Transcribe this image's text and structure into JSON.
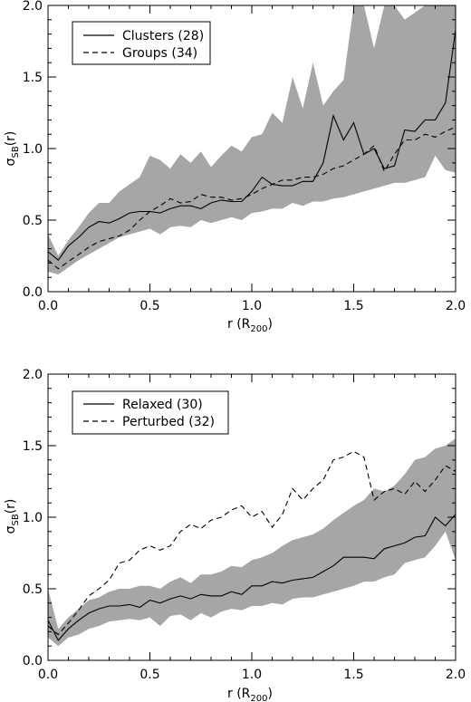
{
  "chart_data": [
    {
      "type": "line",
      "xlabel": {
        "main": "r (R",
        "sub": "200",
        "close": ")"
      },
      "ylabel": {
        "main": "σ",
        "sub": "SB",
        "close": "(r)"
      },
      "xlim": [
        0.0,
        2.0
      ],
      "ylim": [
        0.0,
        2.0
      ],
      "xticks": [
        "0.0",
        "0.5",
        "1.0",
        "1.5",
        "2.0"
      ],
      "yticks": [
        "0.0",
        "0.5",
        "1.0",
        "1.5",
        "2.0"
      ],
      "legend_position": "top-left",
      "band_color": "#a6a6a6",
      "band": {
        "x": [
          0.0,
          0.05,
          0.1,
          0.15,
          0.2,
          0.25,
          0.3,
          0.35,
          0.4,
          0.45,
          0.5,
          0.55,
          0.6,
          0.65,
          0.7,
          0.75,
          0.8,
          0.85,
          0.9,
          0.95,
          1.0,
          1.05,
          1.1,
          1.15,
          1.2,
          1.25,
          1.3,
          1.35,
          1.4,
          1.45,
          1.5,
          1.55,
          1.6,
          1.65,
          1.7,
          1.75,
          1.8,
          1.85,
          1.9,
          1.95,
          2.0
        ],
        "upper": [
          0.4,
          0.25,
          0.36,
          0.45,
          0.55,
          0.62,
          0.62,
          0.7,
          0.75,
          0.8,
          0.95,
          0.92,
          0.86,
          0.96,
          0.9,
          0.98,
          0.87,
          0.95,
          1.02,
          0.98,
          1.08,
          1.1,
          1.25,
          1.18,
          1.5,
          1.28,
          1.6,
          1.3,
          1.4,
          1.48,
          2.0,
          2.0,
          1.7,
          2.0,
          2.0,
          1.9,
          1.95,
          2.0,
          2.0,
          2.0,
          2.0
        ],
        "lower": [
          0.14,
          0.12,
          0.17,
          0.22,
          0.26,
          0.3,
          0.34,
          0.38,
          0.4,
          0.42,
          0.44,
          0.4,
          0.45,
          0.46,
          0.45,
          0.5,
          0.48,
          0.5,
          0.52,
          0.5,
          0.55,
          0.56,
          0.58,
          0.58,
          0.62,
          0.6,
          0.63,
          0.63,
          0.65,
          0.66,
          0.68,
          0.7,
          0.72,
          0.74,
          0.76,
          0.76,
          0.78,
          0.8,
          0.95,
          0.85,
          0.83
        ]
      },
      "series": [
        {
          "name": "Clusters (28)",
          "dash": "solid",
          "x": [
            0.0,
            0.05,
            0.1,
            0.15,
            0.2,
            0.25,
            0.3,
            0.35,
            0.4,
            0.45,
            0.5,
            0.55,
            0.6,
            0.65,
            0.7,
            0.75,
            0.8,
            0.85,
            0.9,
            0.95,
            1.0,
            1.05,
            1.1,
            1.15,
            1.2,
            1.25,
            1.3,
            1.35,
            1.4,
            1.45,
            1.5,
            1.55,
            1.6,
            1.65,
            1.7,
            1.75,
            1.8,
            1.85,
            1.9,
            1.95,
            2.0
          ],
          "values": [
            0.28,
            0.22,
            0.32,
            0.38,
            0.45,
            0.49,
            0.48,
            0.51,
            0.55,
            0.56,
            0.56,
            0.55,
            0.58,
            0.6,
            0.6,
            0.58,
            0.62,
            0.64,
            0.63,
            0.63,
            0.7,
            0.8,
            0.75,
            0.74,
            0.74,
            0.77,
            0.77,
            0.9,
            1.23,
            1.06,
            1.18,
            0.96,
            1.0,
            0.86,
            0.88,
            1.13,
            1.12,
            1.2,
            1.2,
            1.32,
            1.83
          ]
        },
        {
          "name": "Groups (34)",
          "dash": "dashed",
          "x": [
            0.0,
            0.05,
            0.1,
            0.15,
            0.2,
            0.25,
            0.3,
            0.35,
            0.4,
            0.45,
            0.5,
            0.55,
            0.6,
            0.65,
            0.7,
            0.75,
            0.8,
            0.85,
            0.9,
            0.95,
            1.0,
            1.05,
            1.1,
            1.15,
            1.2,
            1.25,
            1.3,
            1.35,
            1.4,
            1.45,
            1.5,
            1.55,
            1.6,
            1.65,
            1.7,
            1.75,
            1.8,
            1.85,
            1.9,
            1.95,
            2.0
          ],
          "values": [
            0.22,
            0.16,
            0.21,
            0.26,
            0.31,
            0.35,
            0.37,
            0.39,
            0.43,
            0.5,
            0.56,
            0.6,
            0.65,
            0.62,
            0.63,
            0.68,
            0.66,
            0.66,
            0.64,
            0.65,
            0.68,
            0.72,
            0.75,
            0.78,
            0.78,
            0.8,
            0.8,
            0.82,
            0.86,
            0.88,
            0.92,
            0.96,
            1.02,
            0.84,
            0.96,
            1.06,
            1.06,
            1.1,
            1.08,
            1.12,
            1.15
          ]
        }
      ]
    },
    {
      "type": "line",
      "xlabel": {
        "main": "r (R",
        "sub": "200",
        "close": ")"
      },
      "ylabel": {
        "main": "σ",
        "sub": "SB",
        "close": "(r)"
      },
      "xlim": [
        0.0,
        2.0
      ],
      "ylim": [
        0.0,
        2.0
      ],
      "xticks": [
        "0.0",
        "0.5",
        "1.0",
        "1.5",
        "2.0"
      ],
      "yticks": [
        "0.0",
        "0.5",
        "1.0",
        "1.5",
        "2.0"
      ],
      "legend_position": "top-left",
      "band_color": "#a6a6a6",
      "band": {
        "x": [
          0.0,
          0.05,
          0.1,
          0.15,
          0.2,
          0.25,
          0.3,
          0.35,
          0.4,
          0.45,
          0.5,
          0.55,
          0.6,
          0.65,
          0.7,
          0.75,
          0.8,
          0.85,
          0.9,
          0.95,
          1.0,
          1.05,
          1.1,
          1.15,
          1.2,
          1.25,
          1.3,
          1.35,
          1.4,
          1.45,
          1.5,
          1.55,
          1.6,
          1.65,
          1.7,
          1.75,
          1.8,
          1.85,
          1.9,
          1.95,
          2.0
        ],
        "upper": [
          0.5,
          0.22,
          0.3,
          0.36,
          0.42,
          0.44,
          0.48,
          0.5,
          0.5,
          0.52,
          0.52,
          0.5,
          0.55,
          0.58,
          0.54,
          0.6,
          0.6,
          0.62,
          0.66,
          0.65,
          0.7,
          0.72,
          0.75,
          0.8,
          0.84,
          0.86,
          0.88,
          0.92,
          0.98,
          1.03,
          1.08,
          1.12,
          1.2,
          1.18,
          1.22,
          1.3,
          1.4,
          1.42,
          1.48,
          1.5,
          1.55
        ],
        "lower": [
          0.16,
          0.1,
          0.16,
          0.18,
          0.22,
          0.24,
          0.27,
          0.28,
          0.29,
          0.28,
          0.3,
          0.24,
          0.31,
          0.32,
          0.28,
          0.33,
          0.3,
          0.34,
          0.36,
          0.35,
          0.38,
          0.38,
          0.4,
          0.39,
          0.43,
          0.44,
          0.44,
          0.46,
          0.48,
          0.5,
          0.52,
          0.55,
          0.55,
          0.58,
          0.6,
          0.68,
          0.7,
          0.72,
          0.8,
          0.9,
          0.7
        ]
      },
      "series": [
        {
          "name": "Relaxed (30)",
          "dash": "solid",
          "x": [
            0.0,
            0.05,
            0.1,
            0.15,
            0.2,
            0.25,
            0.3,
            0.35,
            0.4,
            0.45,
            0.5,
            0.55,
            0.6,
            0.65,
            0.7,
            0.75,
            0.8,
            0.85,
            0.9,
            0.95,
            1.0,
            1.05,
            1.1,
            1.15,
            1.2,
            1.25,
            1.3,
            1.35,
            1.4,
            1.45,
            1.5,
            1.55,
            1.6,
            1.65,
            1.7,
            1.75,
            1.8,
            1.85,
            1.9,
            1.95,
            2.0
          ],
          "values": [
            0.28,
            0.14,
            0.22,
            0.28,
            0.33,
            0.36,
            0.38,
            0.38,
            0.39,
            0.37,
            0.42,
            0.4,
            0.43,
            0.45,
            0.43,
            0.46,
            0.45,
            0.45,
            0.48,
            0.46,
            0.52,
            0.52,
            0.55,
            0.54,
            0.56,
            0.57,
            0.58,
            0.62,
            0.66,
            0.72,
            0.72,
            0.72,
            0.71,
            0.78,
            0.8,
            0.82,
            0.86,
            0.87,
            1.0,
            0.94,
            1.02
          ]
        },
        {
          "name": "Perturbed (32)",
          "dash": "dashed",
          "x": [
            0.0,
            0.05,
            0.1,
            0.15,
            0.2,
            0.25,
            0.3,
            0.35,
            0.4,
            0.45,
            0.5,
            0.55,
            0.6,
            0.65,
            0.7,
            0.75,
            0.8,
            0.85,
            0.9,
            0.95,
            1.0,
            1.05,
            1.1,
            1.15,
            1.2,
            1.25,
            1.3,
            1.35,
            1.4,
            1.45,
            1.5,
            1.55,
            1.6,
            1.65,
            1.7,
            1.75,
            1.8,
            1.85,
            1.9,
            1.95,
            2.0
          ],
          "values": [
            0.24,
            0.18,
            0.26,
            0.35,
            0.45,
            0.5,
            0.56,
            0.68,
            0.7,
            0.77,
            0.8,
            0.77,
            0.8,
            0.9,
            0.95,
            0.92,
            0.98,
            1.0,
            1.05,
            1.08,
            1.0,
            1.04,
            0.93,
            1.02,
            1.2,
            1.12,
            1.2,
            1.26,
            1.4,
            1.42,
            1.46,
            1.42,
            1.12,
            1.18,
            1.2,
            1.16,
            1.25,
            1.18,
            1.26,
            1.36,
            1.32
          ]
        }
      ]
    }
  ]
}
